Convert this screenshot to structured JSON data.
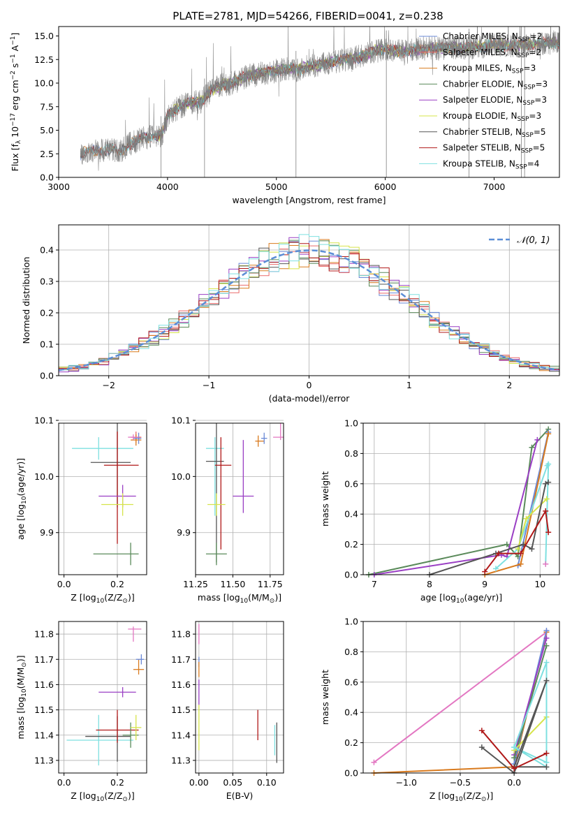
{
  "figure": {
    "title": "PLATE=2781, MJD=54266, FIBERID=0041, z=0.238"
  },
  "colors": {
    "chabrier_miles": "#6a88d6",
    "salpeter_miles": "#ea6a6a",
    "kroupa_miles": "#d97b1f",
    "chabrier_elodie": "#5a8a5a",
    "salpeter_elodie": "#9a3fc4",
    "kroupa_elodie": "#d6e44a",
    "chabrier_stelib": "#555555",
    "salpeter_stelib": "#b01818",
    "kroupa_stelib": "#7ee0e0",
    "pink": "#e377c2",
    "data_gray": "#808080",
    "gauss": "#5b8ed6",
    "grid": "#b0b0b0"
  },
  "chart_data": [
    {
      "id": "spectrum",
      "type": "line",
      "xlabel": "wavelength [Angstrom, rest frame]",
      "ylabel": "Flux [f_λ 10^-17 erg cm^-2 s^-1 A^-1]",
      "xlim": [
        3000,
        7600
      ],
      "ylim": [
        0,
        16
      ],
      "xticks": [
        3000,
        4000,
        5000,
        6000,
        7000
      ],
      "yticks": [
        0.0,
        2.5,
        5.0,
        7.5,
        10.0,
        12.5,
        15.0
      ],
      "grid": false,
      "legend_position": "top-right",
      "legend": [
        {
          "label": "Chabrier MILES, N_SSP=2",
          "color_key": "chabrier_miles"
        },
        {
          "label": "Salpeter MILES, N_SSP=2",
          "color_key": "salpeter_miles"
        },
        {
          "label": "Kroupa MILES, N_SSP=3",
          "color_key": "kroupa_miles"
        },
        {
          "label": "Chabrier ELODIE, N_SSP=3",
          "color_key": "chabrier_elodie"
        },
        {
          "label": "Salpeter ELODIE, N_SSP=3",
          "color_key": "salpeter_elodie"
        },
        {
          "label": "Kroupa ELODIE, N_SSP=3",
          "color_key": "kroupa_elodie"
        },
        {
          "label": "Chabrier STELIB, N_SSP=5",
          "color_key": "chabrier_stelib"
        },
        {
          "label": "Salpeter STELIB, N_SSP=5",
          "color_key": "salpeter_stelib"
        },
        {
          "label": "Kroupa STELIB, N_SSP=4",
          "color_key": "kroupa_stelib"
        }
      ],
      "continuum_model": {
        "x": [
          3200,
          3300,
          3400,
          3500,
          3550,
          3650,
          3750,
          3850,
          3950,
          4000,
          4100,
          4200,
          4300,
          4400,
          4500,
          4600,
          4700,
          4800,
          4900,
          5000,
          5100,
          5200,
          5300,
          5400,
          5500,
          5600,
          5700,
          5800,
          5900,
          6000,
          6100,
          6200,
          6300,
          6400,
          6500,
          6600,
          6700,
          6800,
          6900,
          7000,
          7100,
          7200,
          7300,
          7400,
          7500,
          7600
        ],
        "y": [
          2.5,
          2.8,
          2.9,
          3.0,
          2.6,
          3.5,
          4.0,
          4.4,
          4.5,
          6.5,
          7.4,
          7.9,
          8.0,
          9.2,
          9.8,
          10.0,
          10.6,
          10.9,
          11.1,
          11.3,
          11.5,
          11.4,
          11.9,
          11.9,
          12.2,
          12.4,
          12.6,
          12.9,
          13.4,
          13.6,
          13.4,
          13.3,
          13.6,
          13.7,
          13.7,
          13.8,
          13.7,
          13.8,
          13.9,
          14.1,
          14.0,
          14.0,
          14.1,
          14.2,
          14.3,
          14.3
        ]
      },
      "data_range": [
        3200,
        7600
      ],
      "sharp_features": [
        3940,
        4340,
        5180,
        6010,
        6770,
        7250,
        7280
      ]
    },
    {
      "id": "residuals",
      "type": "histogram",
      "xlabel": "(data-model)/error",
      "ylabel": "Normed distribution",
      "xlim": [
        -2.5,
        2.5
      ],
      "ylim": [
        0,
        0.48
      ],
      "xticks": [
        -2,
        -1,
        0,
        1,
        2
      ],
      "yticks": [
        0.0,
        0.1,
        0.2,
        0.3,
        0.4
      ],
      "grid": true,
      "legend_position": "top-right",
      "legend": [
        {
          "label": "𝒩(0, 1)",
          "color_key": "gauss"
        }
      ],
      "bin_width": 0.1,
      "bin_range": [
        -2.5,
        2.5
      ],
      "reference_curve": "normal(0,1)"
    },
    {
      "id": "age_vs_Z",
      "type": "errorbar",
      "xlabel": "Z [log10(Z/Z⊙)]",
      "ylabel": "age [log10(age/yr)]",
      "xlim": [
        -0.02,
        0.31
      ],
      "ylim": [
        9.825,
        10.095
      ],
      "xticks": [
        0.0,
        0.2
      ],
      "yticks": [
        9.9,
        10.0,
        10.1
      ],
      "grid": true,
      "points": [
        {
          "key": "kroupa_stelib",
          "x": 0.13,
          "y": 10.05,
          "xerr": [
            0.1,
            0.13
          ],
          "yerr": [
            0.02,
            0.02
          ]
        },
        {
          "key": "chabrier_stelib",
          "x": 0.2,
          "y": 10.025,
          "xerr": [
            0.1,
            0.05
          ],
          "yerr": [
            0.08,
            0.08
          ]
        },
        {
          "key": "salpeter_stelib",
          "x": 0.2,
          "y": 10.02,
          "xerr": [
            0.05,
            0.08
          ],
          "yerr": [
            0.14,
            0.06
          ]
        },
        {
          "key": "salpeter_elodie",
          "x": 0.22,
          "y": 9.965,
          "xerr": [
            0.09,
            0.05
          ],
          "yerr": [
            0.02,
            0.02
          ]
        },
        {
          "key": "kroupa_elodie",
          "x": 0.22,
          "y": 9.95,
          "xerr": [
            0.08,
            0.04
          ],
          "yerr": [
            0.02,
            0.02
          ]
        },
        {
          "key": "chabrier_elodie",
          "x": 0.25,
          "y": 9.862,
          "xerr": [
            0.14,
            0.03
          ],
          "yerr": [
            0.02,
            0.02
          ]
        },
        {
          "key": "salpeter_miles",
          "x": 0.27,
          "y": 10.07,
          "xerr": [
            0.02,
            0.02
          ],
          "yerr": [
            0.01,
            0.01
          ]
        },
        {
          "key": "kroupa_miles",
          "x": 0.27,
          "y": 10.065,
          "xerr": [
            0.02,
            0.02
          ],
          "yerr": [
            0.01,
            0.01
          ]
        },
        {
          "key": "chabrier_miles",
          "x": 0.28,
          "y": 10.068,
          "xerr": [
            0.02,
            0.01
          ],
          "yerr": [
            0.01,
            0.01
          ]
        },
        {
          "key": "pink",
          "x": 0.26,
          "y": 10.07,
          "xerr": [
            0.02,
            0.02
          ],
          "yerr": [
            0.005,
            0.005
          ]
        }
      ]
    },
    {
      "id": "age_vs_mass",
      "type": "errorbar",
      "xlabel": "mass [log10(M/M⊙)]",
      "ylabel": "",
      "xlim": [
        11.25,
        11.84
      ],
      "ylim": [
        9.825,
        10.095
      ],
      "xticks": [
        11.25,
        11.5,
        11.75
      ],
      "yticks": [
        9.9,
        10.0,
        10.1
      ],
      "grid": true,
      "points": [
        {
          "key": "kroupa_stelib",
          "x": 11.38,
          "y": 10.05,
          "xerr": [
            0.06,
            0.06
          ],
          "yerr": [
            0.12,
            0.02
          ]
        },
        {
          "key": "chabrier_stelib",
          "x": 11.39,
          "y": 10.027,
          "xerr": [
            0.07,
            0.05
          ],
          "yerr": [
            0.18,
            0.08
          ]
        },
        {
          "key": "salpeter_stelib",
          "x": 11.42,
          "y": 10.02,
          "xerr": [
            0.04,
            0.07
          ],
          "yerr": [
            0.15,
            0.05
          ]
        },
        {
          "key": "salpeter_elodie",
          "x": 11.57,
          "y": 9.965,
          "xerr": [
            0.07,
            0.07
          ],
          "yerr": [
            0.03,
            0.1
          ]
        },
        {
          "key": "kroupa_elodie",
          "x": 11.39,
          "y": 9.95,
          "xerr": [
            0.06,
            0.06
          ],
          "yerr": [
            0.02,
            0.02
          ]
        },
        {
          "key": "chabrier_elodie",
          "x": 11.39,
          "y": 9.862,
          "xerr": [
            0.07,
            0.07
          ],
          "yerr": [
            0.02,
            0.02
          ]
        },
        {
          "key": "kroupa_miles",
          "x": 11.67,
          "y": 10.063,
          "xerr": [
            0.02,
            0.04
          ],
          "yerr": [
            0.01,
            0.01
          ]
        },
        {
          "key": "chabrier_miles",
          "x": 11.71,
          "y": 10.068,
          "xerr": [
            0.02,
            0.02
          ],
          "yerr": [
            0.01,
            0.01
          ]
        },
        {
          "key": "pink",
          "x": 11.82,
          "y": 10.07,
          "xerr": [
            0.05,
            0.03
          ],
          "yerr": [
            0.005,
            0.04
          ]
        }
      ]
    },
    {
      "id": "weight_vs_age",
      "type": "line",
      "xlabel": "age [log10(age/yr)]",
      "ylabel": "mass weight",
      "xlim": [
        6.8,
        10.35
      ],
      "ylim": [
        0,
        1.0
      ],
      "xticks": [
        7,
        8,
        9,
        10
      ],
      "yticks": [
        0.0,
        0.2,
        0.4,
        0.6,
        0.8,
        1.0
      ],
      "grid": true,
      "series": [
        {
          "key": "chabrier_elodie",
          "x": [
            6.9,
            9.4,
            9.6,
            9.85,
            10.15
          ],
          "y": [
            0.0,
            0.2,
            0.12,
            0.84,
            0.96
          ]
        },
        {
          "key": "salpeter_elodie",
          "x": [
            7.0,
            9.3,
            9.4,
            9.95
          ],
          "y": [
            0.0,
            0.13,
            0.12,
            0.89
          ]
        },
        {
          "key": "chabrier_miles",
          "x": [
            9.6,
            10.15
          ],
          "y": [
            0.06,
            0.94
          ]
        },
        {
          "key": "kroupa_miles",
          "x": [
            9.0,
            9.65,
            10.15
          ],
          "y": [
            0.0,
            0.07,
            0.93
          ]
        },
        {
          "key": "kroupa_stelib",
          "x": [
            9.2,
            9.6,
            10.13,
            10.15,
            10.1
          ],
          "y": [
            0.04,
            0.17,
            0.72,
            0.73,
            0.07
          ]
        },
        {
          "key": "kroupa_elodie",
          "x": [
            9.6,
            9.75,
            10.12
          ],
          "y": [
            0.17,
            0.37,
            0.5
          ]
        },
        {
          "key": "chabrier_stelib",
          "x": [
            8.0,
            9.2,
            9.7,
            9.85,
            10.1,
            10.15
          ],
          "y": [
            0.0,
            0.14,
            0.2,
            0.17,
            0.6,
            0.61
          ]
        },
        {
          "key": "salpeter_stelib",
          "x": [
            9.0,
            9.25,
            9.65,
            10.1,
            10.15
          ],
          "y": [
            0.02,
            0.14,
            0.14,
            0.42,
            0.28
          ]
        },
        {
          "key": "pink",
          "x": [
            10.1
          ],
          "y": [
            0.07
          ]
        }
      ]
    },
    {
      "id": "mass_vs_Z",
      "type": "errorbar",
      "xlabel": "Z [log10(Z/Z⊙)]",
      "ylabel": "mass [log10(M/M⊙)]",
      "xlim": [
        -0.02,
        0.31
      ],
      "ylim": [
        11.25,
        11.85
      ],
      "xticks": [
        0.0,
        0.2
      ],
      "yticks": [
        11.3,
        11.4,
        11.5,
        11.6,
        11.7,
        11.8
      ],
      "grid": true,
      "points": [
        {
          "key": "kroupa_stelib",
          "x": 0.13,
          "y": 11.38,
          "xerr": [
            0.12,
            0.13
          ],
          "yerr": [
            0.1,
            0.1
          ]
        },
        {
          "key": "chabrier_stelib",
          "x": 0.2,
          "y": 11.395,
          "xerr": [
            0.12,
            0.05
          ],
          "yerr": [
            0.1,
            0.08
          ]
        },
        {
          "key": "salpeter_stelib",
          "x": 0.2,
          "y": 11.42,
          "xerr": [
            0.08,
            0.08
          ],
          "yerr": [
            0.05,
            0.08
          ]
        },
        {
          "key": "chabrier_elodie",
          "x": 0.25,
          "y": 11.4,
          "xerr": [
            0.03,
            0.03
          ],
          "yerr": [
            0.05,
            0.05
          ]
        },
        {
          "key": "kroupa_elodie",
          "x": 0.27,
          "y": 11.43,
          "xerr": [
            0.02,
            0.02
          ],
          "yerr": [
            0.05,
            0.05
          ]
        },
        {
          "key": "salpeter_elodie",
          "x": 0.22,
          "y": 11.57,
          "xerr": [
            0.09,
            0.05
          ],
          "yerr": [
            0.02,
            0.02
          ]
        },
        {
          "key": "kroupa_miles",
          "x": 0.28,
          "y": 11.66,
          "xerr": [
            0.02,
            0.02
          ],
          "yerr": [
            0.02,
            0.04
          ]
        },
        {
          "key": "chabrier_miles",
          "x": 0.29,
          "y": 11.7,
          "xerr": [
            0.02,
            0.01
          ],
          "yerr": [
            0.02,
            0.02
          ]
        },
        {
          "key": "pink",
          "x": 0.26,
          "y": 11.82,
          "xerr": [
            0.02,
            0.03
          ],
          "yerr": [
            0.05,
            0.01
          ]
        }
      ]
    },
    {
      "id": "mass_vs_ebv",
      "type": "errorbar",
      "xlabel": "E(B-V)",
      "ylabel": "",
      "xlim": [
        -0.005,
        0.125
      ],
      "ylim": [
        11.25,
        11.85
      ],
      "xticks": [
        0.0,
        0.05,
        0.1
      ],
      "yticks": [
        11.3,
        11.4,
        11.5,
        11.6,
        11.7,
        11.8
      ],
      "grid": true,
      "points": [
        {
          "key": "pink",
          "x": 0.0,
          "y": 11.8,
          "xerr": [
            0.0,
            0.0
          ],
          "yerr": [
            0.04,
            0.04
          ]
        },
        {
          "key": "chabrier_miles",
          "x": 0.0,
          "y": 11.69,
          "xerr": [
            0.0,
            0.0
          ],
          "yerr": [
            0.02,
            0.02
          ]
        },
        {
          "key": "kroupa_miles",
          "x": 0.0,
          "y": 11.66,
          "xerr": [
            0.0,
            0.0
          ],
          "yerr": [
            0.03,
            0.03
          ]
        },
        {
          "key": "salpeter_elodie",
          "x": 0.0,
          "y": 11.57,
          "xerr": [
            0.0,
            0.0
          ],
          "yerr": [
            0.05,
            0.05
          ]
        },
        {
          "key": "kroupa_elodie",
          "x": 0.0,
          "y": 11.43,
          "xerr": [
            0.0,
            0.0
          ],
          "yerr": [
            0.09,
            0.09
          ]
        },
        {
          "key": "salpeter_stelib",
          "x": 0.087,
          "y": 11.43,
          "xerr": [
            0.0,
            0.0
          ],
          "yerr": [
            0.05,
            0.07
          ]
        },
        {
          "key": "kroupa_stelib",
          "x": 0.112,
          "y": 11.37,
          "xerr": [
            0.0,
            0.0
          ],
          "yerr": [
            0.05,
            0.07
          ]
        },
        {
          "key": "chabrier_stelib",
          "x": 0.115,
          "y": 11.37,
          "xerr": [
            0.0,
            0.0
          ],
          "yerr": [
            0.08,
            0.08
          ]
        }
      ]
    },
    {
      "id": "weight_vs_Z",
      "type": "line",
      "xlabel": "Z [log10(Z/Z⊙)]",
      "ylabel": "mass weight",
      "xlim": [
        -1.4,
        0.42
      ],
      "ylim": [
        0,
        1.0
      ],
      "xticks": [
        -1.0,
        -0.5,
        0.0
      ],
      "yticks": [
        0.0,
        0.2,
        0.4,
        0.6,
        0.8,
        1.0
      ],
      "grid": true,
      "series": [
        {
          "key": "pink",
          "x": [
            -1.3,
            0.3
          ],
          "y": [
            0.07,
            0.93
          ]
        },
        {
          "key": "kroupa_miles",
          "x": [
            -1.3,
            0.0,
            0.3
          ],
          "y": [
            0.0,
            0.04,
            0.93
          ]
        },
        {
          "key": "chabrier_miles",
          "x": [
            0.0,
            0.3
          ],
          "y": [
            0.06,
            0.94
          ]
        },
        {
          "key": "salpeter_elodie",
          "x": [
            0.0,
            0.3
          ],
          "y": [
            0.12,
            0.89
          ]
        },
        {
          "key": "chabrier_elodie",
          "x": [
            0.0,
            0.3
          ],
          "y": [
            0.1,
            0.84
          ]
        },
        {
          "key": "kroupa_elodie",
          "x": [
            0.0,
            0.3
          ],
          "y": [
            0.15,
            0.37
          ]
        },
        {
          "key": "kroupa_stelib",
          "x": [
            0.0,
            0.3,
            0.3,
            0.0,
            0.3
          ],
          "y": [
            0.17,
            0.73,
            0.07,
            0.17,
            0.04
          ]
        },
        {
          "key": "chabrier_stelib",
          "x": [
            -0.3,
            0.0,
            0.3,
            0.0,
            0.3
          ],
          "y": [
            0.17,
            0.0,
            0.61,
            0.04,
            0.04
          ]
        },
        {
          "key": "salpeter_stelib",
          "x": [
            -0.3,
            0.0,
            0.3
          ],
          "y": [
            0.28,
            0.03,
            0.13
          ]
        }
      ]
    }
  ]
}
